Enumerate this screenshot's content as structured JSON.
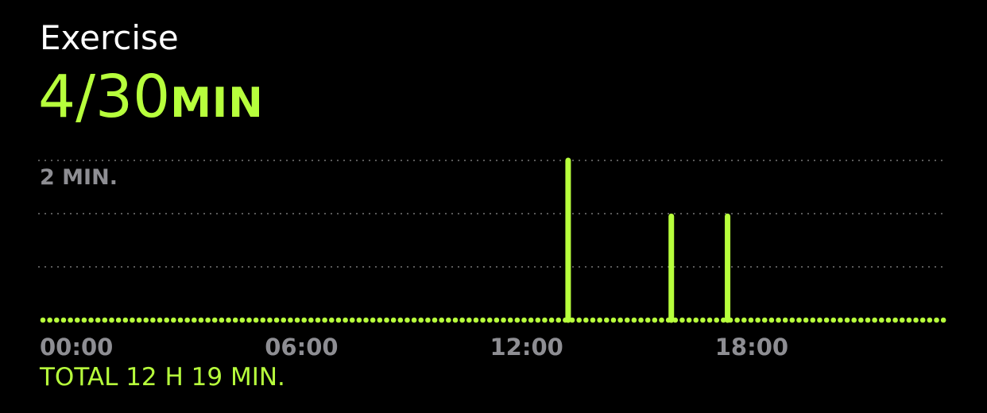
{
  "header": {
    "title": "Exercise",
    "value": "4/30",
    "unit": "MIN"
  },
  "footer": {
    "total": "TOTAL 12 H 19 MIN."
  },
  "colors": {
    "accent": "#b7ff3c",
    "grid": "#5a5a5a",
    "label": "#8e8e93",
    "background": "#000000"
  },
  "chart_data": {
    "type": "bar",
    "title": "",
    "xlabel": "",
    "ylabel": "",
    "y_label": "2 MIN.",
    "x": [
      14,
      16.75,
      18.25
    ],
    "values": [
      2,
      1.3,
      1.3
    ],
    "xlim": [
      0,
      24
    ],
    "ylim": [
      0,
      2
    ],
    "xticks": [
      "00:00",
      "06:00",
      "12:00",
      "18:00"
    ],
    "xtick_values": [
      0,
      6,
      12,
      18
    ],
    "grid": true
  }
}
